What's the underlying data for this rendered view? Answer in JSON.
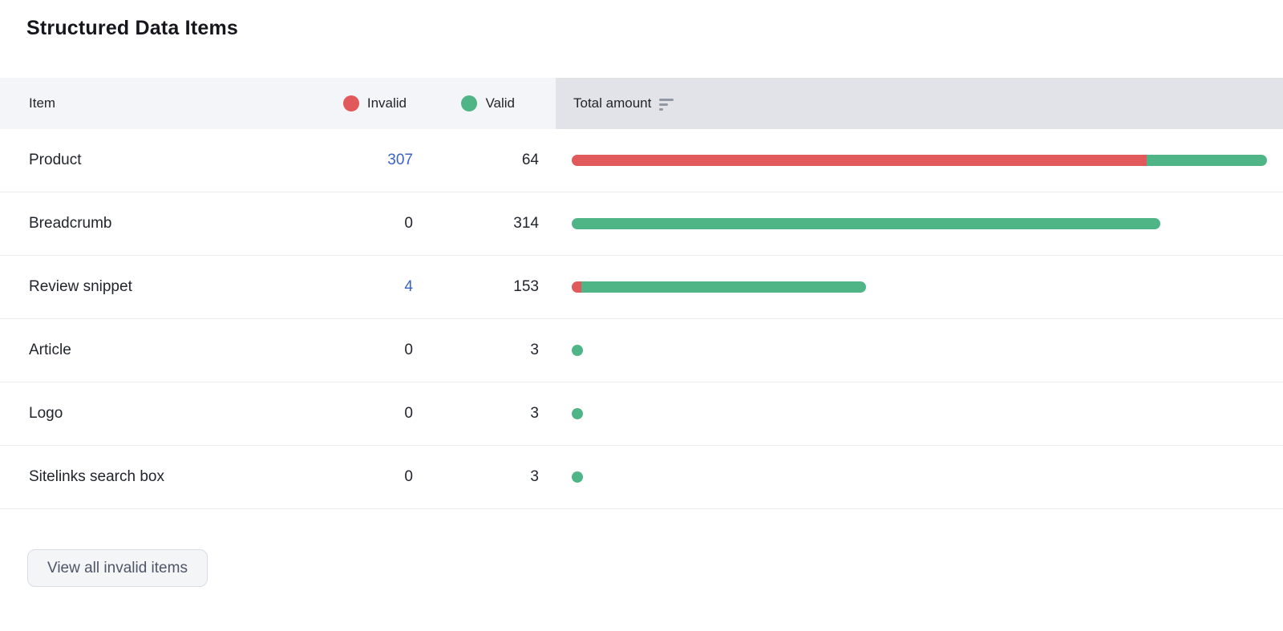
{
  "title": "Structured Data Items",
  "table": {
    "headers": {
      "item": "Item",
      "invalid": "Invalid",
      "valid": "Valid",
      "total": "Total amount"
    },
    "max_total": 371,
    "rows": [
      {
        "item": "Product",
        "invalid": 307,
        "valid": 64,
        "invalid_is_link": true
      },
      {
        "item": "Breadcrumb",
        "invalid": 0,
        "valid": 314,
        "invalid_is_link": false
      },
      {
        "item": "Review snippet",
        "invalid": 4,
        "valid": 153,
        "invalid_is_link": true
      },
      {
        "item": "Article",
        "invalid": 0,
        "valid": 3,
        "invalid_is_link": false
      },
      {
        "item": "Logo",
        "invalid": 0,
        "valid": 3,
        "invalid_is_link": false
      },
      {
        "item": "Sitelinks search box",
        "invalid": 0,
        "valid": 3,
        "invalid_is_link": false
      }
    ]
  },
  "colors": {
    "invalid": "#e2595c",
    "valid": "#4fb586",
    "link_blue": "#3b63c5",
    "header_left_bg": "#f4f5f8",
    "header_total_bg": "#e2e3e9"
  },
  "icons": {
    "sort": "sort-descending-icon"
  },
  "footer": {
    "view_all_invalid_label": "View all invalid items"
  }
}
